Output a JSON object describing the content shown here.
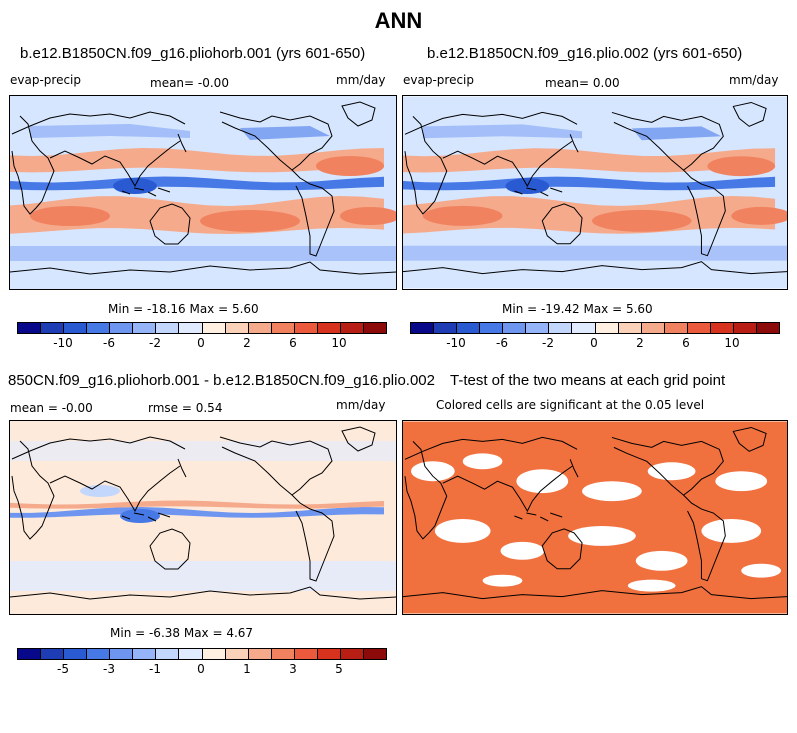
{
  "figure": {
    "title": "ANN"
  },
  "panels": [
    {
      "id": "p1",
      "title": "b.e12.B1850CN.f09_g16.pliohorb.001 (yrs 601-650)",
      "left_label": "evap-precip",
      "center_label": "mean=  -0.00",
      "right_label": "mm/day",
      "minmax": "Min = -18.16 Max =   5.60"
    },
    {
      "id": "p2",
      "title": "b.e12.B1850CN.f09_g16.plio.002 (yrs 601-650)",
      "left_label": "evap-precip",
      "center_label": "mean=   0.00",
      "right_label": "mm/day",
      "minmax": "Min = -19.42 Max =   5.60"
    },
    {
      "id": "p3",
      "title": "850CN.f09_g16.pliohorb.001 - b.e12.B1850CN.f09_g16.plio.002",
      "left_label": "mean =  -0.00",
      "center_label": "rmse =   0.54",
      "right_label": "mm/day",
      "minmax": "Min =  -6.38 Max =   4.67"
    },
    {
      "id": "p4",
      "title": "T-test of the two means at each grid point",
      "subtitle": "Colored cells are significant at the 0.05 level"
    }
  ],
  "colorbars": {
    "full": {
      "colors": [
        "#08088a",
        "#1e3cb4",
        "#2a5ad2",
        "#4678e6",
        "#6e96f0",
        "#96b4f8",
        "#c3d7fc",
        "#e1ebff",
        "#fff0e1",
        "#fad2b9",
        "#f5aa8c",
        "#f0825f",
        "#eb5a3c",
        "#d7321e",
        "#b91e14",
        "#8c0a0a"
      ],
      "ticks": [
        "-10",
        "-6",
        "-2",
        "0",
        "2",
        "6",
        "10"
      ]
    },
    "diff": {
      "colors": [
        "#08088a",
        "#1e3cb4",
        "#2a5ad2",
        "#4678e6",
        "#6e96f0",
        "#96b4f8",
        "#c3d7fc",
        "#e1ebff",
        "#fff0e1",
        "#fad2b9",
        "#f5aa8c",
        "#f0825f",
        "#eb5a3c",
        "#d7321e",
        "#b91e14",
        "#8c0a0a"
      ],
      "ticks": [
        "-5",
        "-3",
        "-1",
        "0",
        "1",
        "3",
        "5"
      ]
    }
  },
  "colors": {
    "ocean_background": "#d6e6ff",
    "land_background": "#ffffff",
    "significant": "#f0703e",
    "diff_background": "#fdeadb"
  }
}
